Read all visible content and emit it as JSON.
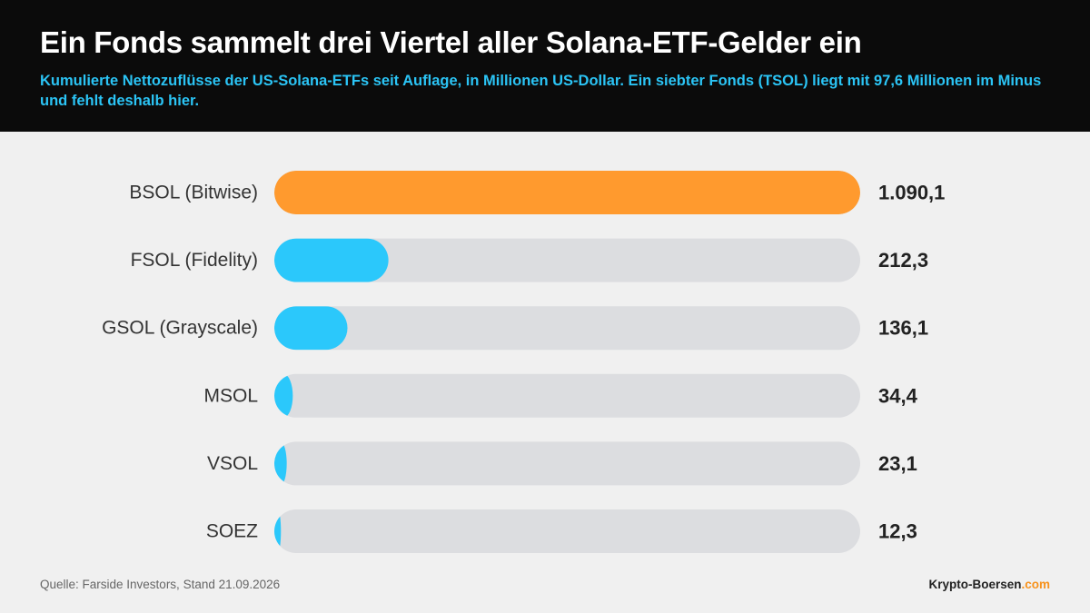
{
  "header": {
    "title": "Ein Fonds sammelt drei Viertel aller Solana-ETF-Gelder ein",
    "subtitle": "Kumulierte Nettozuflüsse der US-Solana-ETFs seit Auflage, in Millionen US-Dollar. Ein siebter Fonds (TSOL) liegt mit 97,6 Millionen im Minus und fehlt deshalb hier."
  },
  "chart_data": {
    "type": "bar",
    "orientation": "horizontal",
    "categories": [
      "BSOL (Bitwise)",
      "FSOL (Fidelity)",
      "GSOL (Grayscale)",
      "MSOL",
      "VSOL",
      "SOEZ"
    ],
    "values": [
      1090.1,
      212.3,
      136.1,
      34.4,
      23.1,
      12.3
    ],
    "value_labels": [
      "1.090,1",
      "212,3",
      "136,1",
      "34,4",
      "23,1",
      "12,3"
    ],
    "xlim": [
      0,
      1090.1
    ],
    "grid": false,
    "legend": "none",
    "colors": {
      "highlight": "#ff9a2e",
      "bar": "#2bc8fb",
      "track": "#dcdde0"
    }
  },
  "footer": {
    "source": "Quelle: Farside Investors, Stand 21.09.2026",
    "brand_main": "Krypto-Boersen",
    "brand_suffix": ".com"
  }
}
